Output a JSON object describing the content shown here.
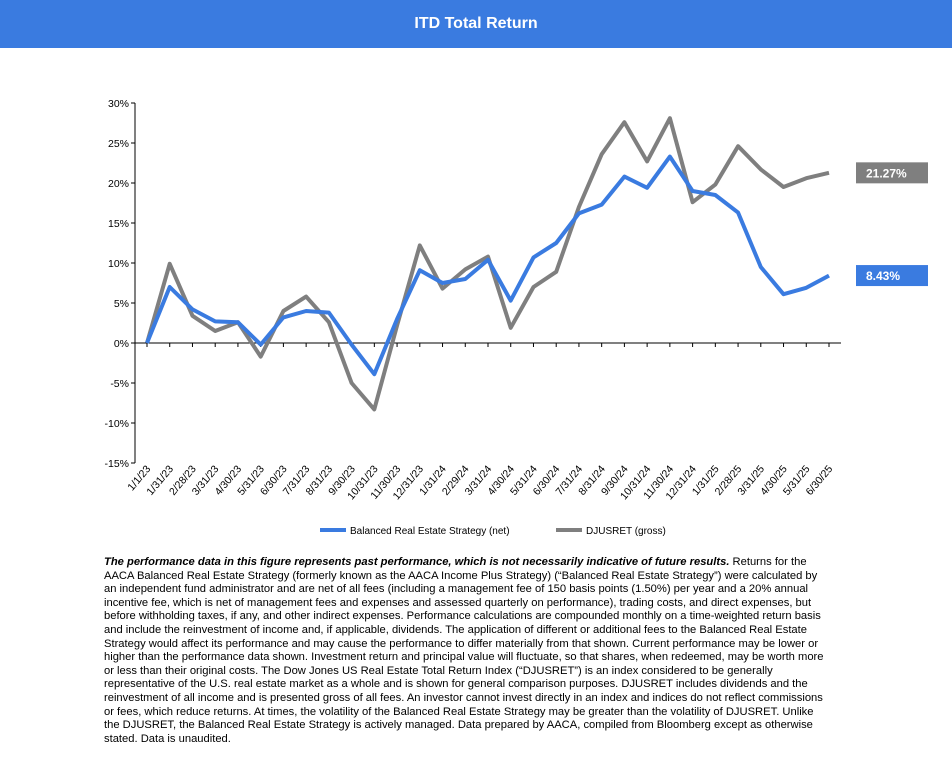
{
  "header": {
    "title": "ITD Total Return"
  },
  "chart_data": {
    "type": "line",
    "title": "",
    "ylim": [
      -15,
      30
    ],
    "yticks": [
      "-15%",
      "-10%",
      "-5%",
      "0%",
      "5%",
      "10%",
      "15%",
      "20%",
      "25%",
      "30%"
    ],
    "ytick_values": [
      -15,
      -10,
      -5,
      0,
      5,
      10,
      15,
      20,
      25,
      30
    ],
    "categories": [
      "1/1/23",
      "1/31/23",
      "2/28/23",
      "3/31/23",
      "4/30/23",
      "5/31/23",
      "6/30/23",
      "7/31/23",
      "8/31/23",
      "9/30/23",
      "10/31/23",
      "11/30/23",
      "12/31/23",
      "1/31/24",
      "2/29/24",
      "3/31/24",
      "4/30/24",
      "5/31/24",
      "6/30/24",
      "7/31/24",
      "8/31/24",
      "9/30/24",
      "10/31/24",
      "11/30/24",
      "12/31/24",
      "1/31/25",
      "2/28/25",
      "3/31/25",
      "4/30/25",
      "5/31/25",
      "6/30/25"
    ],
    "series": [
      {
        "name": "Balanced Real Estate Strategy (net)",
        "color": "#3a7be0",
        "values": [
          0,
          7.0,
          4.2,
          2.7,
          2.6,
          -0.2,
          3.2,
          4.0,
          3.8,
          -0.2,
          -3.9,
          3.0,
          9.1,
          7.5,
          8.0,
          10.4,
          5.3,
          10.7,
          12.5,
          16.2,
          17.3,
          20.8,
          19.4,
          23.3,
          19.0,
          18.5,
          16.3,
          9.5,
          6.1,
          6.9,
          8.43
        ],
        "end_label": "8.43%"
      },
      {
        "name": "DJUSRET (gross)",
        "color": "#7f7f7f",
        "values": [
          0,
          9.9,
          3.4,
          1.5,
          2.6,
          -1.7,
          4.0,
          5.8,
          2.6,
          -5.0,
          -8.3,
          2.2,
          12.2,
          6.8,
          9.2,
          10.8,
          1.9,
          7.0,
          8.9,
          17.0,
          23.6,
          27.6,
          22.7,
          28.1,
          17.6,
          19.8,
          24.6,
          21.7,
          19.5,
          20.6,
          21.27
        ],
        "end_label": "21.27%"
      }
    ]
  },
  "disclaimer": {
    "bold_lead": "The performance data in this figure represents past performance, which is not necessarily indicative of future results.",
    "body": " Returns for the AACA  Balanced Real Estate Strategy (formerly known as the AACA  Income Plus Strategy) (“Balanced Real Estate Strategy”) were calculated by  an independent fund administrator and are net of all fees (including a management fee of 150 basis points (1.50%) per year and a 20% annual incentive fee, which is net of management fees and expenses and assessed quarterly on performance), trading costs, and direct expenses, but before withholding taxes, if any,  and other indirect expenses. Performance calculations are compounded monthly on a time-weighted return basis and include the reinvestment of income and, if applicable, dividends. The application of different or additional fees to the Balanced Real Estate Strategy would affect its performance and may cause the performance to differ materially from that shown. Current performance may be lower or higher than the performance data shown. Investment return and principal value will fluctuate, so that shares, when redeemed, may be worth more or less than their original costs. The Dow Jones US Real Estate Total Return Index (“DJUSRET”) is an index considered to be generally representative of the U.S. real estate market as a whole and is shown for general comparison purposes. DJUSRET includes dividends and the reinvestment of all income and is presented gross of all fees. An investor cannot invest directly in an index and indices do not reflect commissions or fees, which reduce returns. At times, the volatility of the Balanced Real Estate Strategy may be greater than the volatility of DJUSRET. Unlike the DJUSRET, the Balanced Real Estate Strategy is actively managed. Data prepared by AACA,  compiled from Bloomberg except as otherwise stated. Data is unaudited."
  }
}
